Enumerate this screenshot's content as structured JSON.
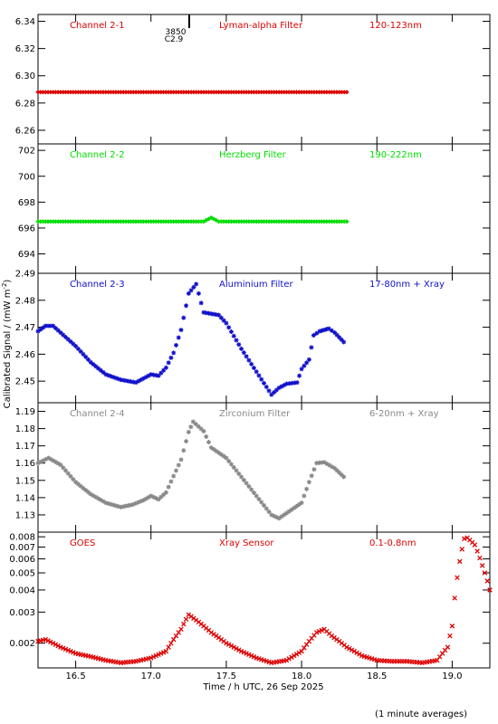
{
  "figure": {
    "ylabel": "Calibrated Signal / (mW m",
    "ylabel_sup": "-2",
    "ylabel_end": ")",
    "xlabel": "Time / h UTC, 26 Sep 2025",
    "footnote": "(1 minute averages)",
    "event_marker": {
      "x": 17.3,
      "number": "3850",
      "class": "C2.9"
    }
  },
  "chart_data": [
    {
      "type": "scatter",
      "channel": "Channel 2-1",
      "filter": "Lyman-alpha Filter",
      "band": "120-123nm",
      "color": "#dd0000",
      "marker": "diamond",
      "xlim": [
        16.25,
        19.25
      ],
      "ylim": [
        6.25,
        6.345
      ],
      "yticks": [
        6.26,
        6.28,
        6.3,
        6.32,
        6.34
      ],
      "ytick_labels": [
        "6.26",
        "6.28",
        "6.30",
        "6.32",
        "6.34"
      ],
      "ylog": false,
      "x": [
        16.25,
        18.3
      ],
      "y": [
        6.288,
        6.288
      ]
    },
    {
      "type": "scatter",
      "channel": "Channel 2-2",
      "filter": "Herzberg Filter",
      "band": "190-222nm",
      "color": "#00dd00",
      "marker": "diamond",
      "xlim": [
        16.25,
        19.25
      ],
      "ylim": [
        692.5,
        702.5
      ],
      "yticks": [
        694,
        696,
        698,
        700,
        702
      ],
      "ytick_labels": [
        "694",
        "696",
        "698",
        "700",
        "702"
      ],
      "ylog": false,
      "x": [
        16.25,
        17.0,
        17.35,
        17.4,
        17.45,
        18.3
      ],
      "y": [
        696.5,
        696.5,
        696.5,
        696.8,
        696.5,
        696.5
      ]
    },
    {
      "type": "scatter",
      "channel": "Channel 2-3",
      "filter": "Aluminium Filter",
      "band": "17-80nm + Xray",
      "color": "#1010cc",
      "marker": "star",
      "xlim": [
        16.25,
        19.25
      ],
      "ylim": [
        2.442,
        2.49
      ],
      "yticks": [
        2.45,
        2.46,
        2.47,
        2.48,
        2.49
      ],
      "ytick_labels": [
        "2.45",
        "2.46",
        "2.47",
        "2.48",
        "2.49"
      ],
      "ylog": false,
      "x": [
        16.25,
        16.3,
        16.35,
        16.4,
        16.5,
        16.6,
        16.7,
        16.8,
        16.9,
        16.95,
        17.0,
        17.05,
        17.1,
        17.15,
        17.2,
        17.25,
        17.3,
        17.35,
        17.45,
        17.5,
        17.6,
        17.7,
        17.8,
        17.85,
        17.9,
        17.97,
        18.0,
        18.05,
        18.08,
        18.12,
        18.18,
        18.22,
        18.28
      ],
      "y": [
        2.4685,
        2.4705,
        2.4705,
        2.468,
        2.463,
        2.457,
        2.4525,
        2.4505,
        2.4495,
        2.451,
        2.4525,
        2.452,
        2.455,
        2.4605,
        2.469,
        2.4825,
        2.486,
        2.4755,
        2.4745,
        2.4715,
        2.462,
        2.4535,
        2.445,
        2.4475,
        2.449,
        2.4495,
        2.4545,
        2.458,
        2.467,
        2.4685,
        2.4695,
        2.468,
        2.4645
      ]
    },
    {
      "type": "scatter",
      "channel": "Channel 2-4",
      "filter": "Zirconium Filter",
      "band": "6-20nm + Xray",
      "color": "#888888",
      "marker": "star",
      "xlim": [
        16.25,
        19.25
      ],
      "ylim": [
        1.12,
        1.195
      ],
      "yticks": [
        1.13,
        1.14,
        1.15,
        1.16,
        1.17,
        1.18,
        1.19
      ],
      "ytick_labels": [
        "1.13",
        "1.14",
        "1.15",
        "1.16",
        "1.17",
        "1.18",
        "1.19"
      ],
      "ylog": false,
      "x": [
        16.25,
        16.32,
        16.4,
        16.5,
        16.6,
        16.7,
        16.8,
        16.88,
        16.95,
        17.0,
        17.05,
        17.1,
        17.2,
        17.25,
        17.28,
        17.35,
        17.4,
        17.5,
        17.6,
        17.7,
        17.8,
        17.85,
        17.95,
        18.0,
        18.05,
        18.1,
        18.15,
        18.22,
        18.28
      ],
      "y": [
        1.16,
        1.163,
        1.159,
        1.149,
        1.142,
        1.137,
        1.1345,
        1.136,
        1.1385,
        1.141,
        1.139,
        1.143,
        1.162,
        1.178,
        1.184,
        1.1785,
        1.169,
        1.163,
        1.152,
        1.141,
        1.13,
        1.128,
        1.134,
        1.137,
        1.149,
        1.16,
        1.1605,
        1.157,
        1.152
      ]
    },
    {
      "type": "scatter",
      "channel": "GOES",
      "filter": "Xray Sensor",
      "band": "0.1-0.8nm",
      "color": "#dd0000",
      "marker": "x",
      "xlim": [
        16.25,
        19.25
      ],
      "ylim": [
        0.00145,
        0.0085
      ],
      "yticks": [
        0.002,
        0.003,
        0.004,
        0.005,
        0.006,
        0.007,
        0.008
      ],
      "ytick_labels": [
        "0.002",
        "0.003",
        "0.004",
        "0.005",
        "0.006",
        "0.007",
        "0.008"
      ],
      "ylog": true,
      "x": [
        16.25,
        16.3,
        16.4,
        16.5,
        16.6,
        16.7,
        16.8,
        16.9,
        17.0,
        17.1,
        17.2,
        17.25,
        17.3,
        17.4,
        17.5,
        17.6,
        17.7,
        17.8,
        17.9,
        18.0,
        18.1,
        18.15,
        18.2,
        18.3,
        18.4,
        18.5,
        18.6,
        18.7,
        18.8,
        18.9,
        18.97,
        19.0,
        19.05,
        19.08,
        19.1,
        19.15,
        19.2,
        19.25
      ],
      "y": [
        0.00205,
        0.0021,
        0.0019,
        0.00175,
        0.00168,
        0.0016,
        0.00155,
        0.00158,
        0.00165,
        0.0018,
        0.0024,
        0.0029,
        0.0027,
        0.0023,
        0.002,
        0.0018,
        0.00165,
        0.00155,
        0.0016,
        0.0018,
        0.0023,
        0.0024,
        0.0022,
        0.0019,
        0.0017,
        0.0016,
        0.00158,
        0.00158,
        0.00155,
        0.0016,
        0.0019,
        0.0025,
        0.0058,
        0.0078,
        0.0079,
        0.0072,
        0.0055,
        0.004
      ]
    }
  ],
  "xaxis": {
    "ticks": [
      16.5,
      17.0,
      17.5,
      18.0,
      18.5,
      19.0
    ],
    "tick_labels": [
      "16.5",
      "17.0",
      "17.5",
      "18.0",
      "18.5",
      "19.0"
    ]
  }
}
